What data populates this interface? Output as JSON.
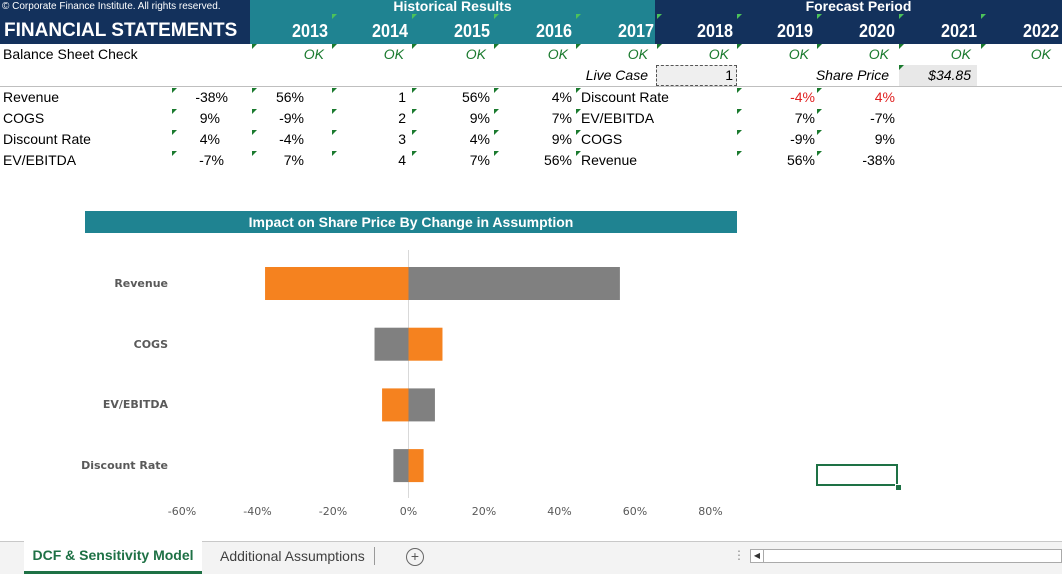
{
  "header": {
    "copyright": "© Corporate Finance Institute. All rights reserved.",
    "title": "FINANCIAL STATEMENTS",
    "historical_label": "Historical Results",
    "forecast_label": "Forecast Period",
    "years": [
      "2013",
      "2014",
      "2015",
      "2016",
      "2017",
      "2018",
      "2019",
      "2020",
      "2021",
      "2022"
    ]
  },
  "check_row": {
    "label": "Balance Sheet Check",
    "values": [
      "OK",
      "OK",
      "OK",
      "OK",
      "OK",
      "OK",
      "OK",
      "OK",
      "OK",
      "OK"
    ]
  },
  "live_case": {
    "label": "Live Case",
    "value": "1"
  },
  "share_price": {
    "label": "Share Price",
    "value": "$34.85"
  },
  "sensitivity_rows": [
    {
      "label": "Revenue",
      "c1": "-38%",
      "c2": "56%",
      "n": "1",
      "c3": "56%",
      "c4": "4%",
      "label2": "Discount Rate",
      "f1": "-4%",
      "f2": "4%"
    },
    {
      "label": "COGS",
      "c1": "9%",
      "c2": "-9%",
      "n": "2",
      "c3": "9%",
      "c4": "7%",
      "label2": "EV/EBITDA",
      "f1": "7%",
      "f2": "-7%"
    },
    {
      "label": "Discount Rate",
      "c1": "4%",
      "c2": "-4%",
      "n": "3",
      "c3": "4%",
      "c4": "9%",
      "label2": "COGS",
      "f1": "-9%",
      "f2": "9%"
    },
    {
      "label": "EV/EBITDA",
      "c1": "-7%",
      "c2": "7%",
      "n": "4",
      "c3": "7%",
      "c4": "56%",
      "label2": "Revenue",
      "f1": "56%",
      "f2": "-38%"
    }
  ],
  "colors": {
    "navy": "#13315c",
    "teal": "#1f8391",
    "orange": "#f5821f",
    "gray": "#808080",
    "ok_green": "#1a7a2e",
    "red": "#e02020"
  },
  "chart_data": {
    "type": "bar",
    "orientation": "horizontal",
    "title": "Impact on Share Price By Change in Assumption",
    "categories": [
      "Revenue",
      "COGS",
      "EV/EBITDA",
      "Discount Rate"
    ],
    "series": [
      {
        "color": "#f5821f",
        "values": [
          -38,
          9,
          -7,
          4
        ]
      },
      {
        "color": "#808080",
        "values": [
          56,
          -9,
          7,
          -4
        ]
      }
    ],
    "x_ticks": [
      "-60%",
      "-40%",
      "-20%",
      "0%",
      "20%",
      "40%",
      "60%",
      "80%"
    ],
    "xlim": [
      -60,
      80
    ],
    "grid": false
  },
  "tabs": {
    "active": "DCF & Sensitivity Model",
    "other": "Additional Assumptions",
    "add_icon": "plus-circle-icon"
  }
}
